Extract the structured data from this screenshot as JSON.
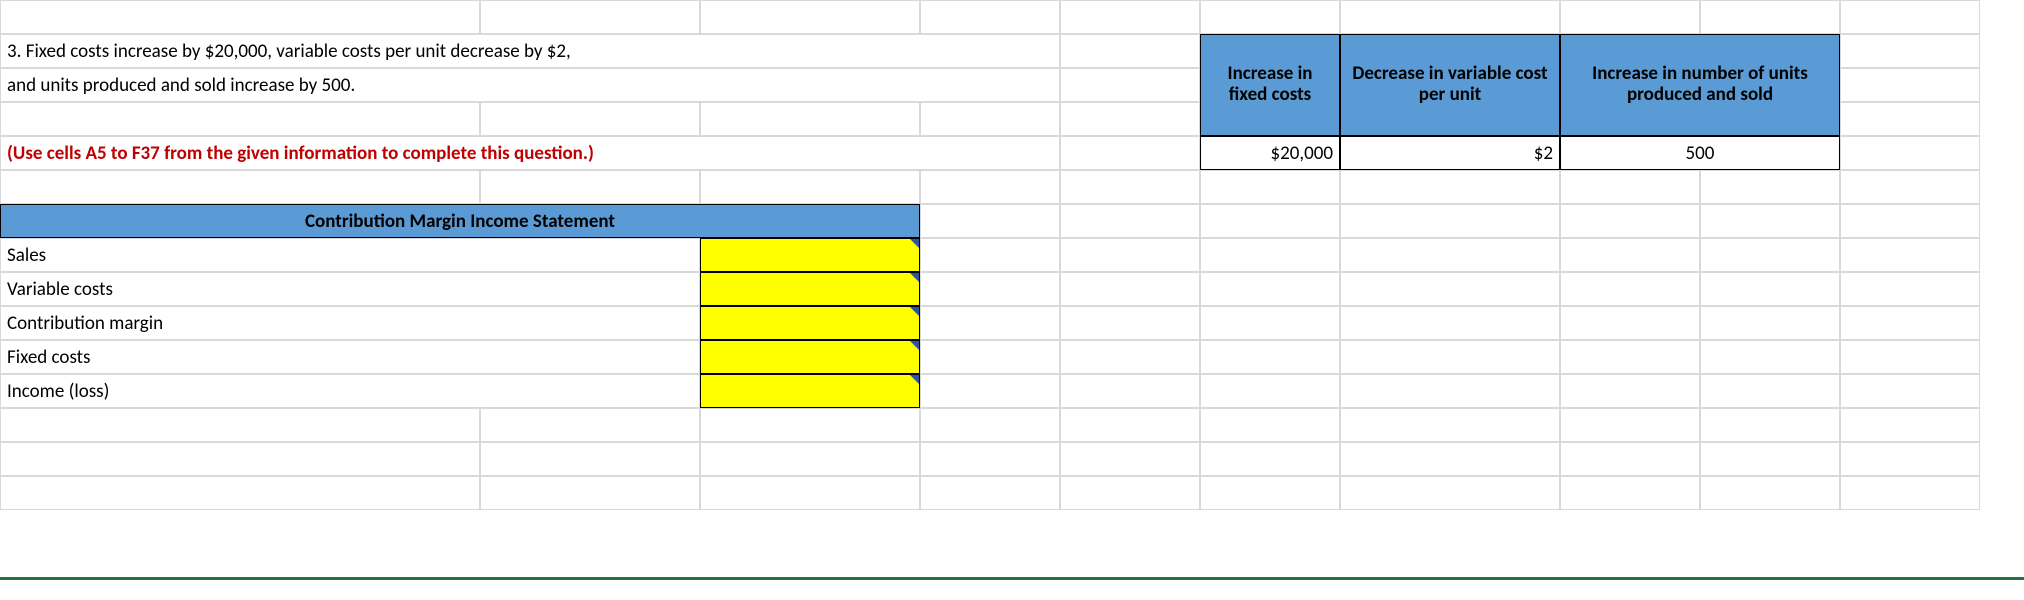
{
  "question_text_line1": "3. Fixed costs increase by $20,000, variable costs per unit decrease by $2,",
  "question_text_line2": "and units produced and sold increase by 500.",
  "instruction_text": "(Use cells A5 to F37 from the given information to complete this question.)",
  "summary_table": {
    "headers": [
      "Increase in fixed costs",
      "Decrease in variable cost per unit",
      "Increase in number of units produced and sold"
    ],
    "values": [
      "$20,000",
      "$2",
      "500"
    ]
  },
  "income_statement": {
    "title": "Contribution Margin Income Statement",
    "rows": [
      "Sales",
      "Variable costs",
      "Contribution margin",
      "Fixed costs",
      "Income (loss)"
    ]
  },
  "colors": {
    "header_blue": "#5b9bd5",
    "input_yellow": "#ffff00",
    "grid": "#d9d9d9",
    "red_text": "#c00000",
    "green_bar": "#217346"
  }
}
